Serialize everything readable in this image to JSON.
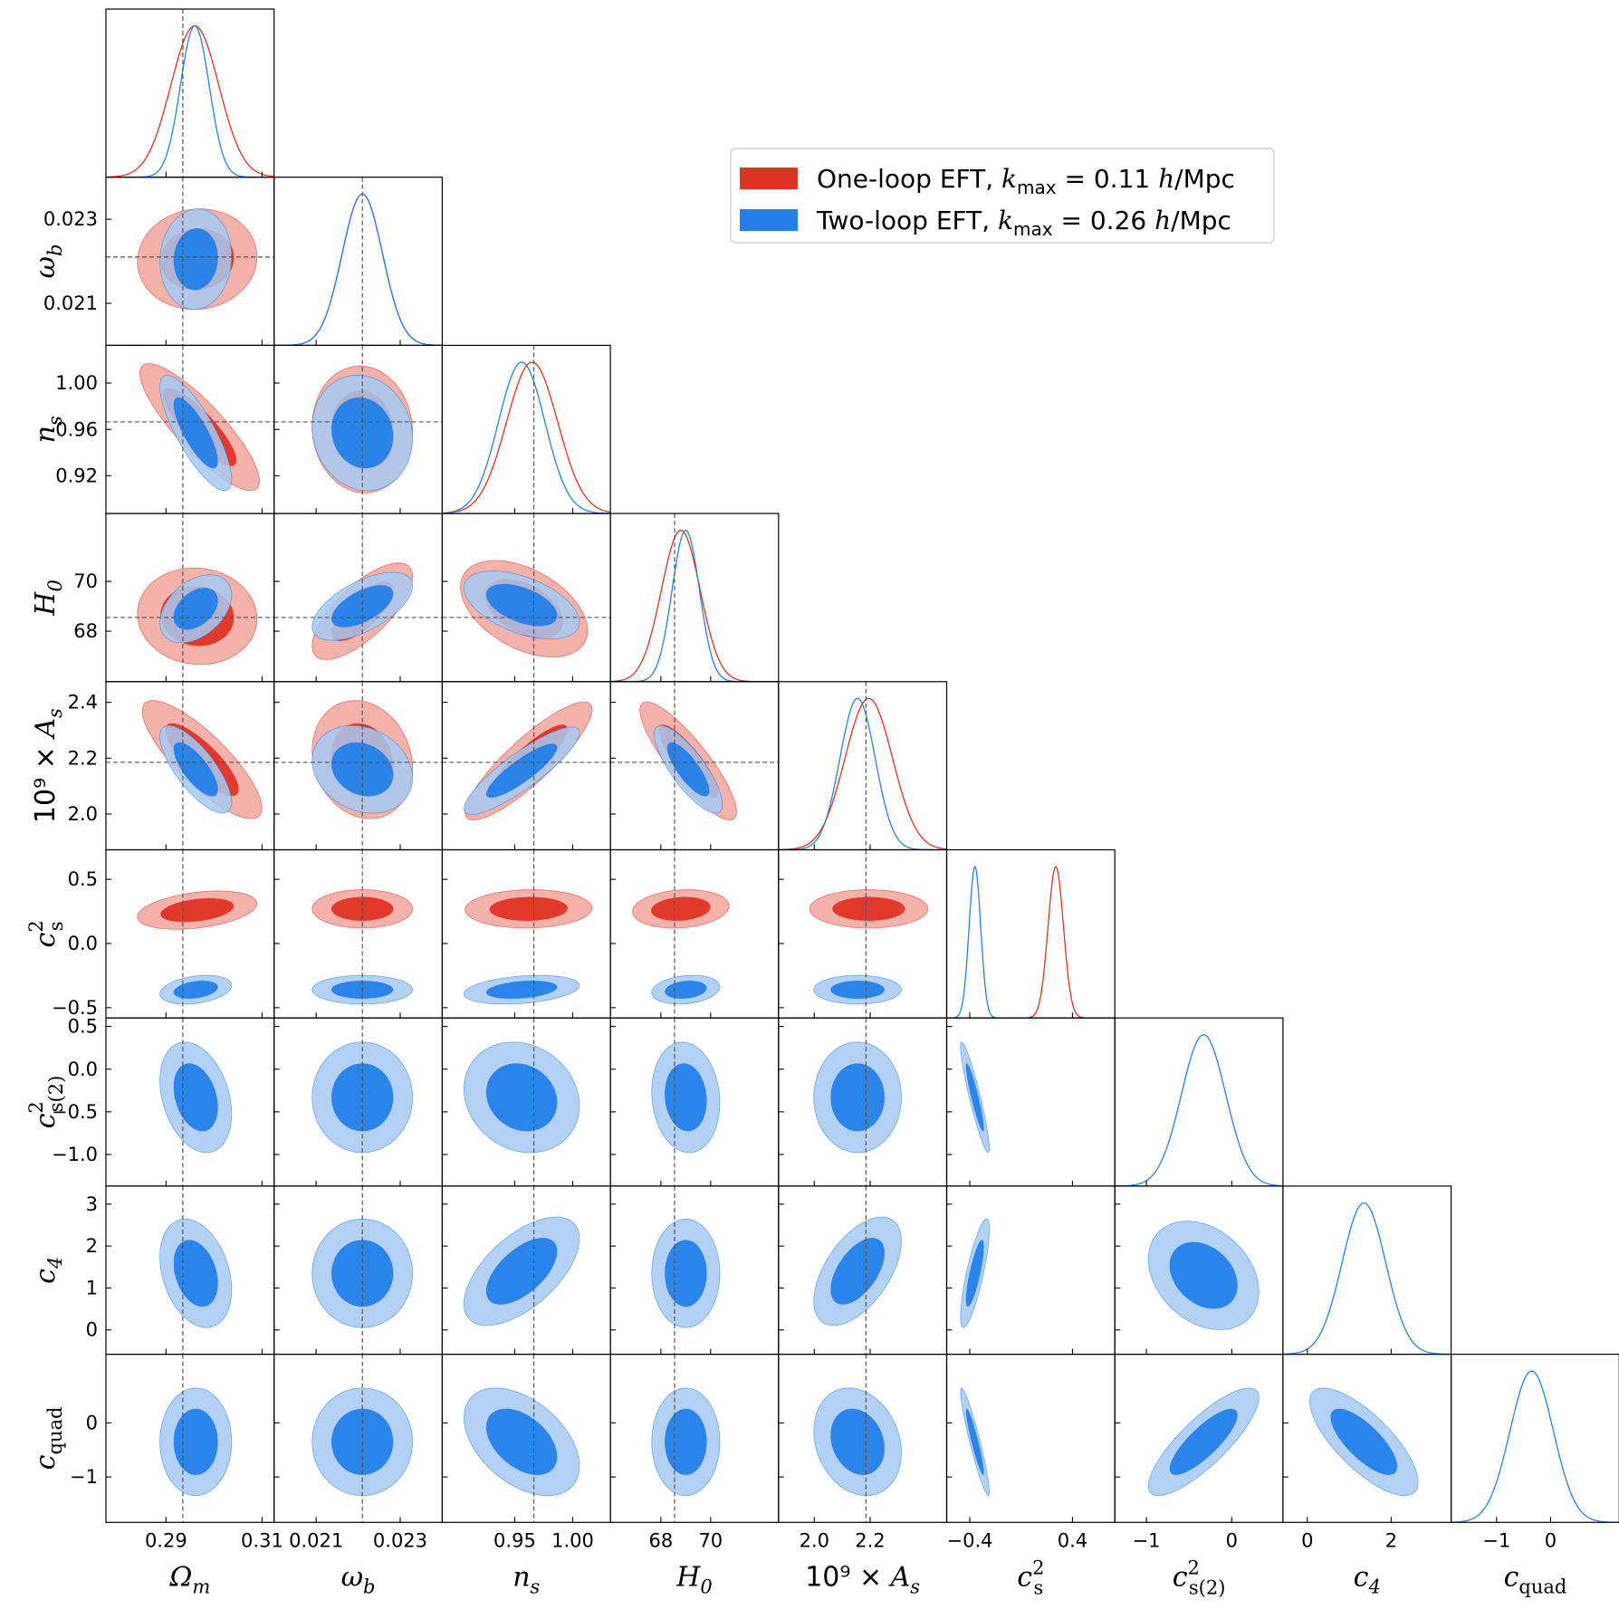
{
  "chart_data": {
    "type": "corner",
    "parameters": [
      {
        "id": "om",
        "label": "Ω",
        "sub": "m",
        "sup": "",
        "prefix": "",
        "fid": 0.2935,
        "range": [
          0.2775,
          0.3125
        ],
        "ticks": [
          {
            "v": 0.29,
            "t": "0.29"
          },
          {
            "v": 0.31,
            "t": "0.31"
          }
        ]
      },
      {
        "id": "wb",
        "label": "ω",
        "sub": "b",
        "sup": "",
        "prefix": "",
        "fid": 0.0221,
        "range": [
          0.02,
          0.024
        ],
        "ticks": [
          {
            "v": 0.021,
            "t": "0.021"
          },
          {
            "v": 0.023,
            "t": "0.023"
          }
        ]
      },
      {
        "id": "ns",
        "label": "n",
        "sub": "s",
        "sup": "",
        "prefix": "",
        "fid": 0.9665,
        "range": [
          0.8875,
          1.0325
        ],
        "ticks": [
          {
            "v": 0.95,
            "t": "0.95"
          },
          {
            "v": 1.0,
            "t": "1.00"
          }
        ],
        "yticks": [
          {
            "v": 0.92,
            "t": "0.92"
          },
          {
            "v": 0.96,
            "t": "0.96"
          },
          {
            "v": 1.0,
            "t": "1.00"
          }
        ]
      },
      {
        "id": "h0",
        "label": "H",
        "sub": "0",
        "sup": "",
        "prefix": "",
        "fid": 68.55,
        "range": [
          65.97,
          72.73
        ],
        "ticks": [
          {
            "v": 68,
            "t": "68"
          },
          {
            "v": 70,
            "t": "70"
          }
        ]
      },
      {
        "id": "as",
        "label": "A",
        "sub": "s",
        "sup": "",
        "prefix": "10⁹ × ",
        "fid": 2.185,
        "range": [
          1.872,
          2.474
        ],
        "ticks": [
          {
            "v": 2.0,
            "t": "2.0"
          },
          {
            "v": 2.2,
            "t": "2.2"
          }
        ],
        "yticks": [
          {
            "v": 2.0,
            "t": "2.0"
          },
          {
            "v": 2.2,
            "t": "2.2"
          },
          {
            "v": 2.4,
            "t": "2.4"
          }
        ]
      },
      {
        "id": "cs",
        "label": "c",
        "sub": "s",
        "sup": "2",
        "prefix": "",
        "fid": null,
        "range": [
          -0.58,
          0.73
        ],
        "ticks": [
          {
            "v": -0.4,
            "t": "−0.4"
          },
          {
            "v": 0.4,
            "t": "0.4"
          }
        ],
        "yticks": [
          {
            "v": -0.5,
            "t": "−0.5"
          },
          {
            "v": 0.0,
            "t": "0.0"
          },
          {
            "v": 0.5,
            "t": "0.5"
          }
        ]
      },
      {
        "id": "cs2",
        "label": "c",
        "sub": "s(2)",
        "sup": "2",
        "prefix": "",
        "fid": null,
        "range": [
          -1.37,
          0.6
        ],
        "ticks": [
          {
            "v": -1,
            "t": "−1"
          },
          {
            "v": 0,
            "t": "0"
          }
        ],
        "yticks": [
          {
            "v": -1.0,
            "t": "−1.0"
          },
          {
            "v": -0.5,
            "t": "−0.5"
          },
          {
            "v": 0.0,
            "t": "0.0"
          },
          {
            "v": 0.5,
            "t": "0.5"
          }
        ]
      },
      {
        "id": "c4",
        "label": "c",
        "sub": "4",
        "sup": "",
        "prefix": "",
        "fid": null,
        "range": [
          -0.58,
          3.43
        ],
        "ticks": [
          {
            "v": 0,
            "t": "0"
          },
          {
            "v": 2,
            "t": "2"
          }
        ],
        "yticks": [
          {
            "v": 0,
            "t": "0"
          },
          {
            "v": 1,
            "t": "1"
          },
          {
            "v": 2,
            "t": "2"
          },
          {
            "v": 3,
            "t": "3"
          }
        ]
      },
      {
        "id": "cq",
        "label": "c",
        "sub": "quad",
        "sup": "",
        "prefix": "",
        "fid": null,
        "range": [
          -1.84,
          1.27
        ],
        "ticks": [
          {
            "v": -1,
            "t": "−1"
          },
          {
            "v": 0,
            "t": "0"
          }
        ],
        "yticks": [
          {
            "v": -1,
            "t": "−1"
          },
          {
            "v": 0,
            "t": "0"
          }
        ]
      }
    ],
    "series": [
      {
        "name": "One-loop EFT, k_max = 0.11 h/Mpc",
        "legend_parts": {
          "pre": "One-loop EFT, ",
          "k": "k",
          "ksub": "max",
          "post": " = 0.11 ",
          "h": "h",
          "unit": "/Mpc"
        },
        "color": "#e03324",
        "fill_inner": "#e03324",
        "fill_outer": "#f3a49c",
        "params": [
          "om",
          "wb",
          "ns",
          "h0",
          "as",
          "cs"
        ],
        "marginals": {
          "om": {
            "mean": 0.296,
            "sd": 0.005
          },
          "wb": {
            "mean": 0.0221,
            "sd": 0.00048
          },
          "ns": {
            "mean": 0.965,
            "sd": 0.022
          },
          "h0": {
            "mean": 68.8,
            "sd": 0.78
          },
          "as": {
            "mean": 2.195,
            "sd": 0.085
          },
          "cs": {
            "mean": 0.27,
            "sd": 0.06
          }
        },
        "contours": [
          {
            "x": "om",
            "y": "wb",
            "cx": 0.2965,
            "cy": 0.02205,
            "sx": 0.005,
            "sy": 0.00048,
            "rho": 0.05
          },
          {
            "x": "om",
            "y": "ns",
            "cx": 0.297,
            "cy": 0.962,
            "sx": 0.005,
            "sy": 0.022,
            "rho": -0.85
          },
          {
            "x": "wb",
            "y": "ns",
            "cx": 0.0221,
            "cy": 0.96,
            "sx": 0.00048,
            "sy": 0.022,
            "rho": -0.05
          },
          {
            "x": "om",
            "y": "h0",
            "cx": 0.2965,
            "cy": 68.6,
            "sx": 0.005,
            "sy": 0.78,
            "rho": -0.05
          },
          {
            "x": "wb",
            "y": "h0",
            "cx": 0.0221,
            "cy": 68.8,
            "sx": 0.00048,
            "sy": 0.78,
            "rho": 0.72
          },
          {
            "x": "ns",
            "y": "h0",
            "cx": 0.958,
            "cy": 68.9,
            "sx": 0.022,
            "sy": 0.78,
            "rho": -0.45
          },
          {
            "x": "om",
            "y": "as",
            "cx": 0.2975,
            "cy": 2.195,
            "sx": 0.005,
            "sy": 0.085,
            "rho": -0.82
          },
          {
            "x": "wb",
            "y": "as",
            "cx": 0.0221,
            "cy": 2.195,
            "sx": 0.00048,
            "sy": 0.085,
            "rho": -0.15
          },
          {
            "x": "ns",
            "y": "as",
            "cx": 0.962,
            "cy": 2.19,
            "sx": 0.022,
            "sy": 0.085,
            "rho": 0.87
          },
          {
            "x": "h0",
            "y": "as",
            "cx": 69.1,
            "cy": 2.19,
            "sx": 0.78,
            "sy": 0.085,
            "rho": -0.86
          },
          {
            "x": "om",
            "y": "cs",
            "cx": 0.2965,
            "cy": 0.26,
            "sx": 0.005,
            "sy": 0.06,
            "rho": 0.35
          },
          {
            "x": "wb",
            "y": "cs",
            "cx": 0.0221,
            "cy": 0.27,
            "sx": 0.00048,
            "sy": 0.06,
            "rho": 0.0
          },
          {
            "x": "ns",
            "y": "cs",
            "cx": 0.962,
            "cy": 0.27,
            "sx": 0.022,
            "sy": 0.06,
            "rho": 0.05
          },
          {
            "x": "h0",
            "y": "cs",
            "cx": 68.8,
            "cy": 0.27,
            "sx": 0.78,
            "sy": 0.06,
            "rho": 0.15
          },
          {
            "x": "as",
            "y": "cs",
            "cx": 2.195,
            "cy": 0.27,
            "sx": 0.085,
            "sy": 0.06,
            "rho": 0.0
          }
        ]
      },
      {
        "name": "Two-loop EFT, k_max = 0.26 h/Mpc",
        "legend_parts": {
          "pre": "Two-loop EFT, ",
          "k": "k",
          "ksub": "max",
          "post": " = 0.26 ",
          "h": "h",
          "unit": "/Mpc"
        },
        "color": "#2d7fe6",
        "fill_inner": "#2480e8",
        "fill_outer": "#a6c9f2",
        "params": [
          "om",
          "wb",
          "ns",
          "h0",
          "as",
          "cs",
          "cs2",
          "c4",
          "cq"
        ],
        "marginals": {
          "om": {
            "mean": 0.296,
            "sd": 0.003
          },
          "wb": {
            "mean": 0.0221,
            "sd": 0.00048
          },
          "ns": {
            "mean": 0.956,
            "sd": 0.02
          },
          "h0": {
            "mean": 69.0,
            "sd": 0.55
          },
          "as": {
            "mean": 2.155,
            "sd": 0.063
          },
          "cs": {
            "mean": -0.36,
            "sd": 0.045
          },
          "cs2": {
            "mean": -0.33,
            "sd": 0.26
          },
          "c4": {
            "mean": 1.35,
            "sd": 0.52
          },
          "cq": {
            "mean": -0.35,
            "sd": 0.4
          }
        },
        "contours": [
          {
            "x": "om",
            "y": "wb",
            "cx": 0.2962,
            "cy": 0.02205,
            "sx": 0.003,
            "sy": 0.00048,
            "rho": 0.05
          },
          {
            "x": "om",
            "y": "ns",
            "cx": 0.2962,
            "cy": 0.957,
            "sx": 0.003,
            "sy": 0.02,
            "rho": -0.8
          },
          {
            "x": "wb",
            "y": "ns",
            "cx": 0.0221,
            "cy": 0.957,
            "sx": 0.00048,
            "sy": 0.02,
            "rho": -0.1
          },
          {
            "x": "om",
            "y": "h0",
            "cx": 0.2962,
            "cy": 68.9,
            "sx": 0.003,
            "sy": 0.55,
            "rho": 0.4
          },
          {
            "x": "wb",
            "y": "h0",
            "cx": 0.0221,
            "cy": 69.0,
            "sx": 0.00048,
            "sy": 0.55,
            "rho": 0.6
          },
          {
            "x": "ns",
            "y": "h0",
            "cx": 0.956,
            "cy": 69.05,
            "sx": 0.02,
            "sy": 0.55,
            "rho": -0.5
          },
          {
            "x": "om",
            "y": "as",
            "cx": 0.2962,
            "cy": 2.16,
            "sx": 0.003,
            "sy": 0.063,
            "rho": -0.75
          },
          {
            "x": "wb",
            "y": "as",
            "cx": 0.0221,
            "cy": 2.16,
            "sx": 0.00048,
            "sy": 0.063,
            "rho": -0.2
          },
          {
            "x": "ns",
            "y": "as",
            "cx": 0.956,
            "cy": 2.155,
            "sx": 0.02,
            "sy": 0.063,
            "rho": 0.87
          },
          {
            "x": "h0",
            "y": "as",
            "cx": 69.1,
            "cy": 2.16,
            "sx": 0.55,
            "sy": 0.063,
            "rho": -0.8
          },
          {
            "x": "om",
            "y": "cs",
            "cx": 0.2962,
            "cy": -0.36,
            "sx": 0.003,
            "sy": 0.045,
            "rho": 0.3
          },
          {
            "x": "wb",
            "y": "cs",
            "cx": 0.0221,
            "cy": -0.36,
            "sx": 0.00048,
            "sy": 0.045,
            "rho": 0.0
          },
          {
            "x": "ns",
            "y": "cs",
            "cx": 0.956,
            "cy": -0.36,
            "sx": 0.02,
            "sy": 0.045,
            "rho": 0.3
          },
          {
            "x": "h0",
            "y": "cs",
            "cx": 69.0,
            "cy": -0.36,
            "sx": 0.55,
            "sy": 0.045,
            "rho": 0.2
          },
          {
            "x": "as",
            "y": "cs",
            "cx": 2.155,
            "cy": -0.36,
            "sx": 0.063,
            "sy": 0.045,
            "rho": 0.0
          },
          {
            "x": "om",
            "y": "cs2",
            "cx": 0.2962,
            "cy": -0.33,
            "sx": 0.003,
            "sy": 0.26,
            "rho": -0.3
          },
          {
            "x": "wb",
            "y": "cs2",
            "cx": 0.0221,
            "cy": -0.33,
            "sx": 0.00048,
            "sy": 0.26,
            "rho": 0.0
          },
          {
            "x": "ns",
            "y": "cs2",
            "cx": 0.956,
            "cy": -0.33,
            "sx": 0.02,
            "sy": 0.26,
            "rho": -0.15
          },
          {
            "x": "h0",
            "y": "cs2",
            "cx": 69.0,
            "cy": -0.33,
            "sx": 0.55,
            "sy": 0.26,
            "rho": -0.1
          },
          {
            "x": "as",
            "y": "cs2",
            "cx": 2.155,
            "cy": -0.33,
            "sx": 0.063,
            "sy": 0.26,
            "rho": 0.0
          },
          {
            "x": "cs",
            "y": "cs2",
            "cx": -0.36,
            "cy": -0.33,
            "sx": 0.045,
            "sy": 0.26,
            "rho": -0.92
          },
          {
            "x": "om",
            "y": "c4",
            "cx": 0.2962,
            "cy": 1.35,
            "sx": 0.003,
            "sy": 0.52,
            "rho": -0.3
          },
          {
            "x": "wb",
            "y": "c4",
            "cx": 0.0221,
            "cy": 1.35,
            "sx": 0.00048,
            "sy": 0.52,
            "rho": 0.0
          },
          {
            "x": "ns",
            "y": "c4",
            "cx": 0.956,
            "cy": 1.4,
            "sx": 0.02,
            "sy": 0.52,
            "rho": 0.6
          },
          {
            "x": "h0",
            "y": "c4",
            "cx": 69.0,
            "cy": 1.35,
            "sx": 0.55,
            "sy": 0.52,
            "rho": 0.0
          },
          {
            "x": "as",
            "y": "c4",
            "cx": 2.155,
            "cy": 1.4,
            "sx": 0.063,
            "sy": 0.52,
            "rho": 0.55
          },
          {
            "x": "cs",
            "y": "c4",
            "cx": -0.36,
            "cy": 1.35,
            "sx": 0.045,
            "sy": 0.52,
            "rho": 0.8
          },
          {
            "x": "cs2",
            "y": "c4",
            "cx": -0.33,
            "cy": 1.3,
            "sx": 0.26,
            "sy": 0.52,
            "rho": -0.3
          },
          {
            "x": "om",
            "y": "cq",
            "cx": 0.2962,
            "cy": -0.35,
            "sx": 0.003,
            "sy": 0.4,
            "rho": 0.0
          },
          {
            "x": "wb",
            "y": "cq",
            "cx": 0.0221,
            "cy": -0.35,
            "sx": 0.00048,
            "sy": 0.4,
            "rho": 0.0
          },
          {
            "x": "ns",
            "y": "cq",
            "cx": 0.956,
            "cy": -0.35,
            "sx": 0.02,
            "sy": 0.4,
            "rho": -0.45
          },
          {
            "x": "h0",
            "y": "cq",
            "cx": 69.0,
            "cy": -0.35,
            "sx": 0.55,
            "sy": 0.4,
            "rho": 0.0
          },
          {
            "x": "as",
            "y": "cq",
            "cx": 2.155,
            "cy": -0.35,
            "sx": 0.063,
            "sy": 0.4,
            "rho": -0.2
          },
          {
            "x": "cs",
            "y": "cq",
            "cx": -0.36,
            "cy": -0.35,
            "sx": 0.045,
            "sy": 0.4,
            "rho": -0.93
          },
          {
            "x": "cs2",
            "y": "cq",
            "cx": -0.33,
            "cy": -0.35,
            "sx": 0.26,
            "sy": 0.4,
            "rho": 0.82
          },
          {
            "x": "c4",
            "y": "cq",
            "cx": 1.35,
            "cy": -0.35,
            "sx": 0.52,
            "sy": 0.4,
            "rho": -0.75
          }
        ]
      }
    ],
    "levels_sigma": [
      1.52,
      2.49
    ],
    "fiducial_line_color": "#555555",
    "legend_placement": "upper-right"
  }
}
